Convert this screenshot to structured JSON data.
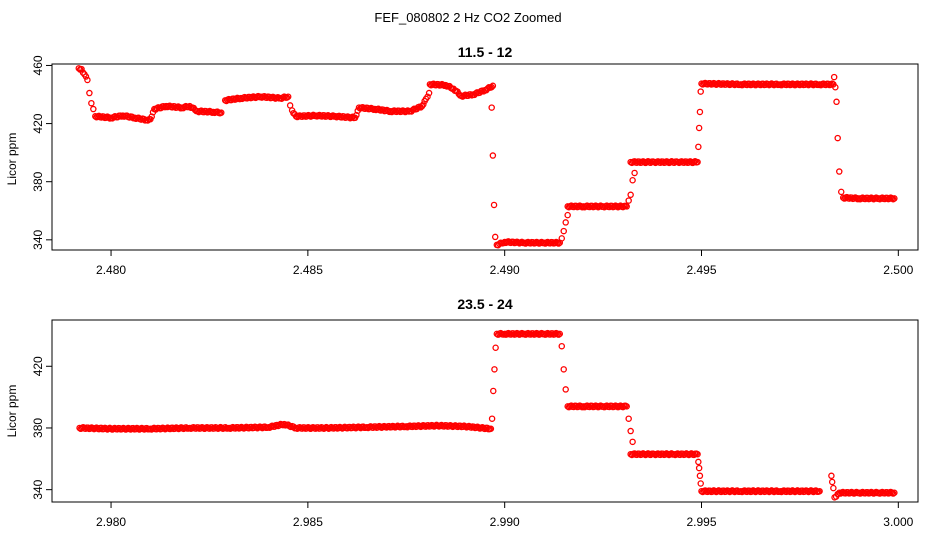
{
  "figure": {
    "title": "FEF_080802  2 Hz CO2 Zoomed"
  },
  "style": {
    "point_color": "#ff0000",
    "axis_color": "#000000",
    "background": "#ffffff"
  },
  "chart_data": [
    {
      "type": "scatter",
      "title": "11.5 - 12",
      "xlabel": "",
      "ylabel": "Licor ppm",
      "xlim": [
        2.4785,
        2.5005
      ],
      "ylim": [
        333,
        461
      ],
      "grid": false,
      "legend": "none",
      "x_ticks": [
        2.48,
        2.485,
        2.49,
        2.495,
        2.5
      ],
      "x_tick_labels": [
        "2.480",
        "2.485",
        "2.490",
        "2.495",
        "2.500"
      ],
      "y_ticks": [
        340,
        380,
        420,
        460
      ],
      "y_tick_labels": [
        "340",
        "380",
        "420",
        "460"
      ],
      "marker": "open-circle",
      "series": [
        {
          "points": [
            [
              2.47918,
              458
            ],
            [
              2.47925,
              457.5
            ],
            [
              2.4794,
              450
            ],
            [
              2.47945,
              441
            ],
            [
              2.4795,
              434
            ],
            [
              2.47955,
              430
            ],
            [
              2.4796,
              425
            ],
            [
              2.48,
              424
            ],
            [
              2.4803,
              425.5
            ],
            [
              2.4806,
              424
            ],
            [
              2.4809,
              422.5
            ],
            [
              2.481,
              423
            ],
            [
              2.4811,
              430
            ],
            [
              2.4814,
              432
            ],
            [
              2.4818,
              431
            ],
            [
              2.482,
              432
            ],
            [
              2.4822,
              428.5
            ],
            [
              2.4826,
              428
            ],
            [
              2.4828,
              427.5
            ],
            [
              2.4829,
              436
            ],
            [
              2.4833,
              437.5
            ],
            [
              2.4838,
              438.5
            ],
            [
              2.4843,
              437.5
            ],
            [
              2.4845,
              438.5
            ],
            [
              2.48455,
              432.5
            ],
            [
              2.4846,
              429
            ],
            [
              2.4847,
              425
            ],
            [
              2.4852,
              425.5
            ],
            [
              2.4857,
              425
            ],
            [
              2.4862,
              424
            ],
            [
              2.4863,
              431
            ],
            [
              2.4867,
              430
            ],
            [
              2.4871,
              428.5
            ],
            [
              2.4876,
              428.5
            ],
            [
              2.4879,
              432
            ],
            [
              2.488,
              437
            ],
            [
              2.48808,
              441
            ],
            [
              2.4881,
              447
            ],
            [
              2.4885,
              446.5
            ],
            [
              2.4887,
              444
            ],
            [
              2.4889,
              439
            ],
            [
              2.4892,
              440
            ],
            [
              2.4895,
              443
            ],
            [
              2.4897,
              446
            ],
            [
              2.48967,
              431
            ],
            [
              2.4897,
              398
            ],
            [
              2.48973,
              364
            ],
            [
              2.48976,
              342
            ],
            [
              2.4898,
              336.5
            ],
            [
              2.49,
              338.5
            ],
            [
              2.4905,
              338
            ],
            [
              2.491,
              338
            ],
            [
              2.4914,
              338
            ],
            [
              2.49145,
              341
            ],
            [
              2.4915,
              346
            ],
            [
              2.49155,
              352
            ],
            [
              2.4916,
              357
            ],
            [
              2.4916,
              363
            ],
            [
              2.492,
              363
            ],
            [
              2.4925,
              363
            ],
            [
              2.4931,
              363
            ],
            [
              2.49315,
              367
            ],
            [
              2.4932,
              371
            ],
            [
              2.49325,
              381
            ],
            [
              2.4933,
              386
            ],
            [
              2.4932,
              393.5
            ],
            [
              2.4938,
              393.5
            ],
            [
              2.4944,
              393.5
            ],
            [
              2.4949,
              393.5
            ],
            [
              2.49492,
              404
            ],
            [
              2.49494,
              417
            ],
            [
              2.49496,
              428
            ],
            [
              2.49498,
              442
            ],
            [
              2.495,
              447.5
            ],
            [
              2.496,
              447
            ],
            [
              2.497,
              447
            ],
            [
              2.498,
              447
            ],
            [
              2.49835,
              447
            ],
            [
              2.49837,
              452
            ],
            [
              2.4984,
              445
            ],
            [
              2.49843,
              435
            ],
            [
              2.49846,
              410
            ],
            [
              2.4985,
              387
            ],
            [
              2.49855,
              373
            ],
            [
              2.4986,
              369
            ],
            [
              2.499,
              368.5
            ],
            [
              2.4995,
              368.5
            ],
            [
              2.4999,
              368.5
            ]
          ]
        }
      ]
    },
    {
      "type": "scatter",
      "title": "23.5 - 24",
      "xlabel": "",
      "ylabel": "Licor ppm",
      "xlim": [
        2.9785,
        3.0005
      ],
      "ylim": [
        332,
        450
      ],
      "grid": false,
      "legend": "none",
      "x_ticks": [
        2.98,
        2.985,
        2.99,
        2.995,
        3.0
      ],
      "x_tick_labels": [
        "2.980",
        "2.985",
        "2.990",
        "2.995",
        "3.000"
      ],
      "y_ticks": [
        340,
        380,
        420
      ],
      "y_tick_labels": [
        "340",
        "380",
        "420"
      ],
      "marker": "open-circle",
      "series": [
        {
          "points": [
            [
              2.9792,
              380
            ],
            [
              2.98,
              379.5
            ],
            [
              2.981,
              379.5
            ],
            [
              2.982,
              380
            ],
            [
              2.983,
              380
            ],
            [
              2.984,
              380.5
            ],
            [
              2.9844,
              382.5
            ],
            [
              2.9847,
              380
            ],
            [
              2.9855,
              380
            ],
            [
              2.9865,
              380.5
            ],
            [
              2.9875,
              381
            ],
            [
              2.9883,
              381.5
            ],
            [
              2.989,
              381
            ],
            [
              2.98965,
              379.5
            ],
            [
              2.98968,
              386
            ],
            [
              2.98971,
              404
            ],
            [
              2.98974,
              418
            ],
            [
              2.98977,
              432
            ],
            [
              2.9898,
              441
            ],
            [
              2.99,
              441
            ],
            [
              2.9905,
              441
            ],
            [
              2.991,
              441
            ],
            [
              2.9914,
              441
            ],
            [
              2.99145,
              433
            ],
            [
              2.9915,
              418
            ],
            [
              2.99155,
              405
            ],
            [
              2.9916,
              394
            ],
            [
              2.992,
              394
            ],
            [
              2.9925,
              394
            ],
            [
              2.9931,
              394
            ],
            [
              2.99315,
              386
            ],
            [
              2.9932,
              378
            ],
            [
              2.99325,
              371
            ],
            [
              2.9932,
              363
            ],
            [
              2.9938,
              363
            ],
            [
              2.9943,
              363
            ],
            [
              2.9949,
              363
            ],
            [
              2.99492,
              358
            ],
            [
              2.99494,
              354
            ],
            [
              2.99496,
              349
            ],
            [
              2.99498,
              344
            ],
            [
              2.995,
              339
            ],
            [
              2.996,
              339
            ],
            [
              2.997,
              339
            ],
            [
              2.998,
              339
            ],
            [
              2.9983,
              349
            ],
            [
              2.99832,
              345
            ],
            [
              2.99835,
              341
            ],
            [
              2.99838,
              335
            ],
            [
              2.9985,
              338
            ],
            [
              2.999,
              338
            ],
            [
              2.9995,
              338
            ],
            [
              2.9999,
              338
            ]
          ]
        }
      ]
    }
  ]
}
